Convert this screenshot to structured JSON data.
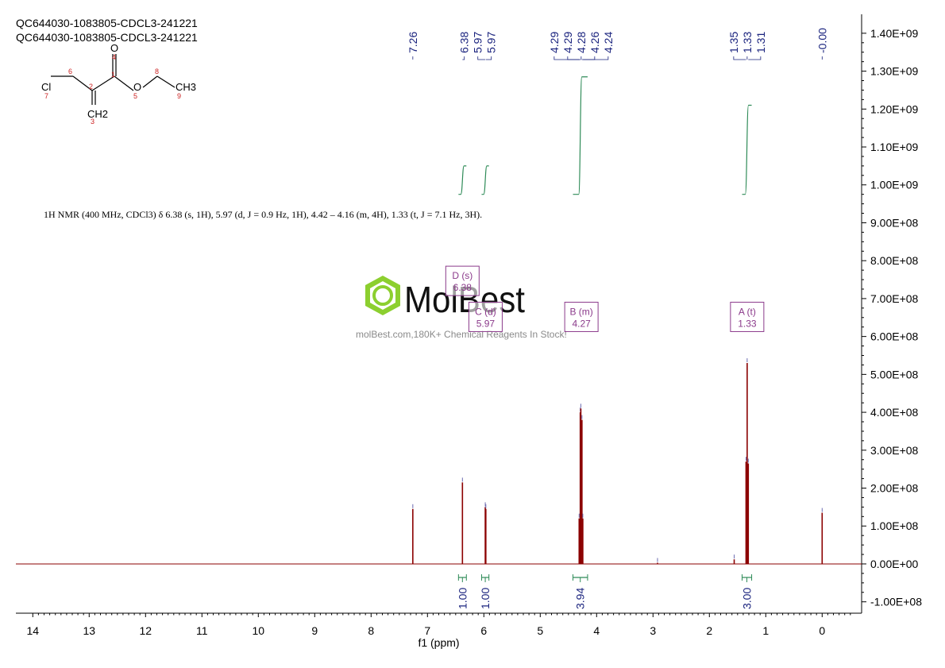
{
  "header": {
    "title_line1": "QC644030-1083805-CDCL3-241221",
    "title_line2": "QC644030-1083805-CDCL3-241221"
  },
  "summary": {
    "prefix": "1H NMR (400 MHz, CDCl3) δ 6.38 (s, 1H), 5.97 (d, J = 0.9 Hz, 1H), 4.42 – 4.16 (m, 4H), 1.33 (t, J = 7.1 Hz, 3H)."
  },
  "watermark": {
    "brand": "MolBest",
    "tagline": "molBest.com,180K+ Chemical Reagents In Stock!"
  },
  "molecule": {
    "atoms": [
      "Cl",
      "O",
      "O",
      "CH3",
      "CH2"
    ],
    "numbers": [
      "1",
      "2",
      "3",
      "4",
      "5",
      "6",
      "7",
      "8",
      "9"
    ]
  },
  "chart_data": {
    "type": "line",
    "title": "QC644030-1083805-CDCL3-241221",
    "xlabel": "f1 (ppm)",
    "ylabel": "",
    "xlim": [
      14.3,
      -0.7
    ],
    "ylim": [
      -130000000,
      1450000000
    ],
    "x_ticks": [
      14,
      13,
      12,
      11,
      10,
      9,
      8,
      7,
      6,
      5,
      4,
      3,
      2,
      1,
      0
    ],
    "y_ticks": [
      -100000000,
      0,
      100000000,
      200000000,
      300000000,
      400000000,
      500000000,
      600000000,
      700000000,
      800000000,
      900000000,
      1000000000,
      1100000000,
      1200000000,
      1300000000,
      1400000000
    ],
    "y_tick_labels": [
      "-1.00E+08",
      "0.00E+00",
      "1.00E+08",
      "2.00E+08",
      "3.00E+08",
      "4.00E+08",
      "5.00E+08",
      "6.00E+08",
      "7.00E+08",
      "8.00E+08",
      "9.00E+08",
      "1.00E+09",
      "1.10E+09",
      "1.20E+09",
      "1.30E+09",
      "1.40E+09"
    ],
    "peaks": [
      {
        "ppm": 7.26,
        "intensity": 145000000
      },
      {
        "ppm": 6.38,
        "intensity": 215000000
      },
      {
        "ppm": 5.975,
        "intensity": 150000000
      },
      {
        "ppm": 5.965,
        "intensity": 145000000
      },
      {
        "ppm": 4.31,
        "intensity": 120000000
      },
      {
        "ppm": 4.29,
        "intensity": 400000000
      },
      {
        "ppm": 4.28,
        "intensity": 410000000
      },
      {
        "ppm": 4.26,
        "intensity": 380000000
      },
      {
        "ppm": 4.245,
        "intensity": 120000000
      },
      {
        "ppm": 1.35,
        "intensity": 270000000
      },
      {
        "ppm": 1.33,
        "intensity": 530000000
      },
      {
        "ppm": 1.31,
        "intensity": 265000000
      },
      {
        "ppm": 1.56,
        "intensity": 12000000
      },
      {
        "ppm": 2.92,
        "intensity": 3000000
      },
      {
        "ppm": 0.0,
        "intensity": 135000000
      }
    ],
    "peak_labels": [
      "7.26",
      "6.38",
      "5.97",
      "5.97",
      "4.29",
      "4.29",
      "4.28",
      "4.26",
      "4.24",
      "1.35",
      "1.33",
      "1.31",
      "-0.00"
    ],
    "peak_label_ppm": [
      7.26,
      6.38,
      5.975,
      5.965,
      4.3,
      4.29,
      4.28,
      4.26,
      4.24,
      1.35,
      1.33,
      1.31,
      0.0
    ],
    "integrals": [
      {
        "from": 6.45,
        "to": 6.31,
        "value": "1.00",
        "start": 975000000,
        "end": 1050000000
      },
      {
        "from": 6.04,
        "to": 5.91,
        "value": "1.00",
        "start": 975000000,
        "end": 1050000000
      },
      {
        "from": 4.42,
        "to": 4.16,
        "value": "3.94",
        "start": 975000000,
        "end": 1285000000
      },
      {
        "from": 1.42,
        "to": 1.25,
        "value": "3.00",
        "start": 975000000,
        "end": 1210000000
      }
    ],
    "multiplets": [
      {
        "label": "D (s)",
        "shift": "6.38",
        "ppm": 6.38,
        "y": 775000000
      },
      {
        "label": "C (d)",
        "shift": "5.97",
        "ppm": 5.97,
        "y": 680000000
      },
      {
        "label": "B (m)",
        "shift": "4.27",
        "ppm": 4.27,
        "y": 680000000
      },
      {
        "label": "A (t)",
        "shift": "1.33",
        "ppm": 1.33,
        "y": 680000000
      }
    ],
    "colors": {
      "spectrum": "#8b0000",
      "integral": "#2e8b57",
      "peak_label": "#1a237e",
      "multiplet": "#8b3a8b",
      "axis": "#000000"
    }
  }
}
